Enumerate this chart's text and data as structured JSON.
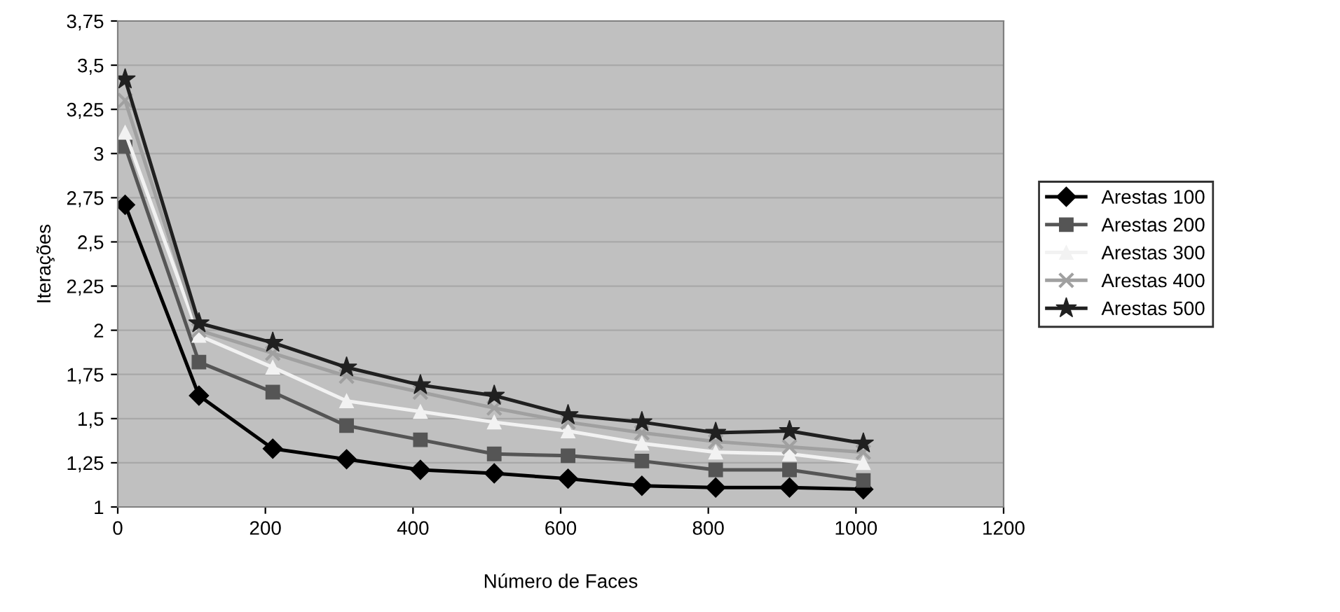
{
  "chart_data": {
    "type": "line",
    "xlabel": "Número de Faces",
    "ylabel": "Iterações",
    "x": [
      10,
      110,
      210,
      310,
      410,
      510,
      610,
      710,
      810,
      910,
      1010
    ],
    "series": [
      {
        "name": "Arestas 100",
        "color": "#000000",
        "marker": "diamond",
        "values": [
          2.71,
          1.63,
          1.33,
          1.27,
          1.21,
          1.19,
          1.16,
          1.12,
          1.11,
          1.11,
          1.1
        ]
      },
      {
        "name": "Arestas 200",
        "color": "#555555",
        "marker": "square",
        "values": [
          3.04,
          1.82,
          1.65,
          1.46,
          1.38,
          1.3,
          1.29,
          1.26,
          1.21,
          1.21,
          1.15
        ]
      },
      {
        "name": "Arestas 300",
        "color": "#f2f2f2",
        "marker": "triangle",
        "values": [
          3.12,
          1.97,
          1.79,
          1.6,
          1.54,
          1.48,
          1.43,
          1.36,
          1.31,
          1.3,
          1.25
        ]
      },
      {
        "name": "Arestas 400",
        "color": "#a0a0a0",
        "marker": "cross",
        "values": [
          3.3,
          2.0,
          1.87,
          1.74,
          1.65,
          1.56,
          1.48,
          1.42,
          1.37,
          1.34,
          1.31
        ]
      },
      {
        "name": "Arestas 500",
        "color": "#202020",
        "marker": "star",
        "values": [
          3.42,
          2.04,
          1.93,
          1.79,
          1.69,
          1.63,
          1.52,
          1.48,
          1.42,
          1.43,
          1.36
        ]
      }
    ],
    "xlim": [
      0,
      1200
    ],
    "xticks": [
      0,
      200,
      400,
      600,
      800,
      1000,
      1200
    ],
    "ylim": [
      1,
      3.75
    ],
    "yticks": [
      {
        "value": 1,
        "label": "1"
      },
      {
        "value": 1.25,
        "label": "1,25"
      },
      {
        "value": 1.5,
        "label": "1,5"
      },
      {
        "value": 1.75,
        "label": "1,75"
      },
      {
        "value": 2,
        "label": "2"
      },
      {
        "value": 2.25,
        "label": "2,25"
      },
      {
        "value": 2.5,
        "label": "2,5"
      },
      {
        "value": 2.75,
        "label": "2,75"
      },
      {
        "value": 3,
        "label": "3"
      },
      {
        "value": 3.25,
        "label": "3,25"
      },
      {
        "value": 3.5,
        "label": "3,5"
      },
      {
        "value": 3.75,
        "label": "3,75"
      }
    ],
    "grid": "y",
    "legend": "right",
    "line_style": "solid"
  }
}
